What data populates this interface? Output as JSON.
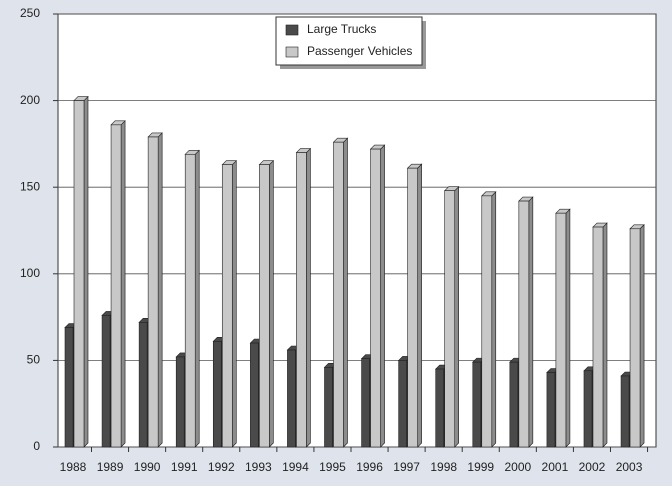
{
  "chart_data": {
    "type": "bar",
    "categories": [
      "1988",
      "1989",
      "1990",
      "1991",
      "1992",
      "1993",
      "1994",
      "1995",
      "1996",
      "1997",
      "1998",
      "1999",
      "2000",
      "2001",
      "2002",
      "2003"
    ],
    "series": [
      {
        "name": "Large Trucks",
        "color": "#4a4a4a",
        "values": [
          69,
          76,
          72,
          52,
          61,
          60,
          56,
          46,
          51,
          50,
          45,
          49,
          49,
          43,
          44,
          41
        ]
      },
      {
        "name": "Passenger Vehicles",
        "color": "#c8c8c8",
        "values": [
          200,
          186,
          179,
          169,
          163,
          163,
          170,
          176,
          172,
          161,
          148,
          145,
          142,
          135,
          127,
          126
        ]
      }
    ],
    "ylim": [
      0,
      250
    ],
    "yticks": [
      0,
      50,
      100,
      150,
      200,
      250
    ],
    "grid": true
  }
}
